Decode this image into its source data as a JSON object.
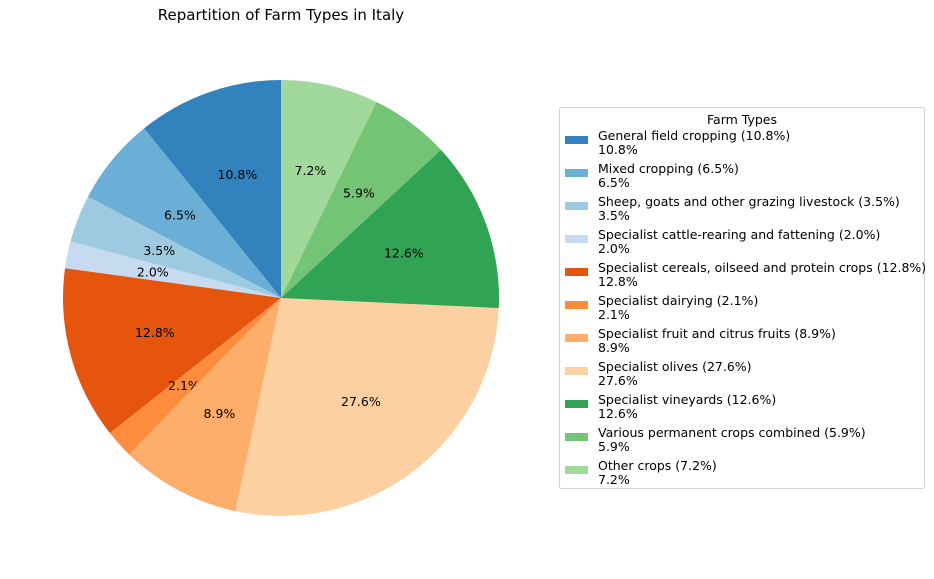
{
  "chart_data": {
    "type": "pie",
    "title": "Repartition of Farm Types in Italy",
    "legend_title": "Farm Types",
    "legend_position": "right",
    "start_angle_deg": 90,
    "direction": "counterclockwise",
    "slices": [
      {
        "label": "General field cropping (10.8%)",
        "value": 10.8,
        "pct_label": "10.8%",
        "color": "#3182bd"
      },
      {
        "label": "Mixed cropping (6.5%)",
        "value": 6.5,
        "pct_label": "6.5%",
        "color": "#6baed6"
      },
      {
        "label": "Sheep, goats and other grazing livestock (3.5%)",
        "value": 3.5,
        "pct_label": "3.5%",
        "color": "#9ecae1"
      },
      {
        "label": "Specialist cattle-rearing and fattening (2.0%)",
        "value": 2.0,
        "pct_label": "2.0%",
        "color": "#c6dbef"
      },
      {
        "label": "Specialist cereals, oilseed and protein crops (12.8%)",
        "value": 12.8,
        "pct_label": "12.8%",
        "color": "#e6550d"
      },
      {
        "label": "Specialist dairying (2.1%)",
        "value": 2.1,
        "pct_label": "2.1%",
        "color": "#fd8d3c"
      },
      {
        "label": "Specialist fruit and citrus fruits (8.9%)",
        "value": 8.9,
        "pct_label": "8.9%",
        "color": "#fdae6b"
      },
      {
        "label": "Specialist olives (27.6%)",
        "value": 27.6,
        "pct_label": "27.6%",
        "color": "#fdd0a2"
      },
      {
        "label": "Specialist vineyards (12.6%)",
        "value": 12.6,
        "pct_label": "12.6%",
        "color": "#31a354"
      },
      {
        "label": "Various permanent crops combined (5.9%)",
        "value": 5.9,
        "pct_label": "5.9%",
        "color": "#74c476"
      },
      {
        "label": "Other crops (7.2%)",
        "value": 7.2,
        "pct_label": "7.2%",
        "color": "#a1d99b"
      }
    ]
  }
}
